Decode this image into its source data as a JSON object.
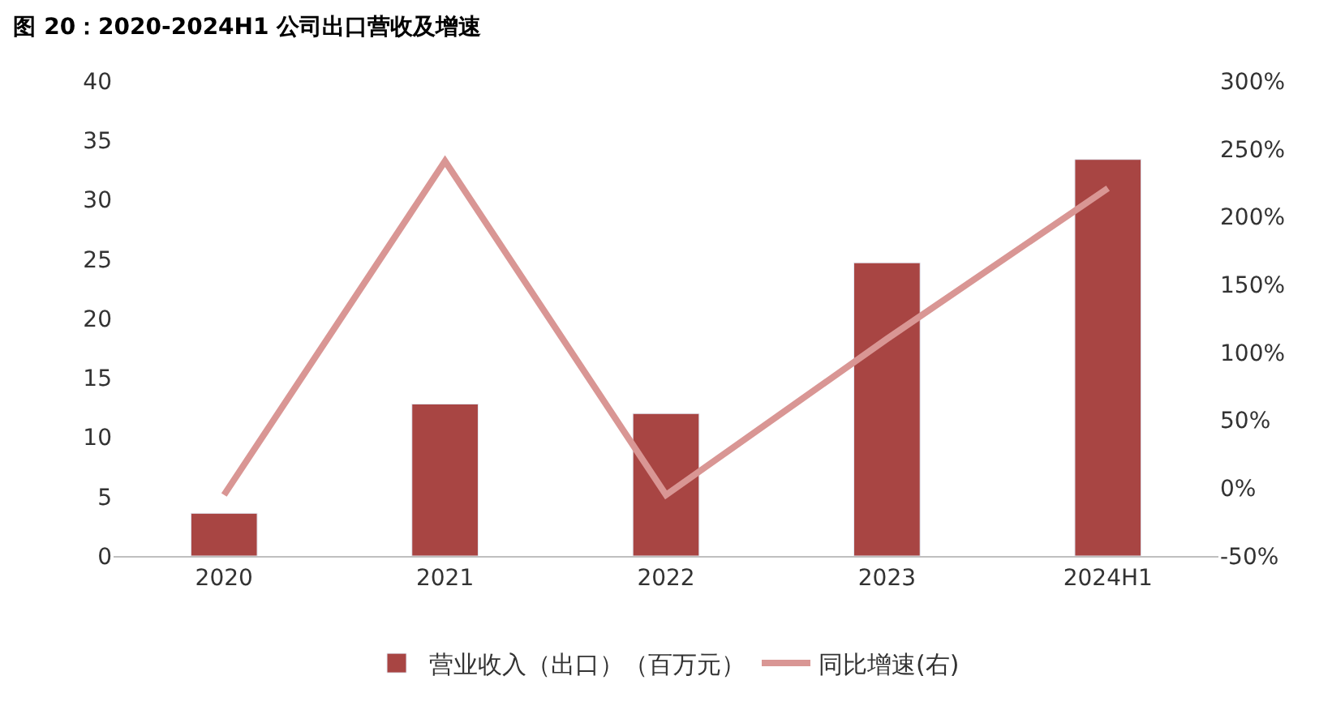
{
  "chart_data": {
    "type": "bar",
    "title": "图 20：2020-2024H1 公司出口营收及增速",
    "categories": [
      "2020",
      "2021",
      "2022",
      "2023",
      "2024H1"
    ],
    "series": [
      {
        "name": "营业收入（出口）（百万元）",
        "color": "#a84543",
        "values": [
          3.6,
          12.8,
          12.0,
          24.7,
          33.4
        ]
      },
      {
        "name": "同比增速(右)",
        "type": "line",
        "axis": "y2",
        "color": "#d99694",
        "marker": "none",
        "values": [
          -5,
          241,
          -5,
          110,
          221
        ]
      }
    ],
    "ylim": [
      0,
      40
    ],
    "yticks": [
      0,
      5,
      10,
      15,
      20,
      25,
      30,
      35,
      40
    ],
    "y2lim": [
      -50,
      300
    ],
    "y2ticks": [
      {
        "value": -50,
        "label": "-50%"
      },
      {
        "value": 0,
        "label": "0%"
      },
      {
        "value": 50,
        "label": "50%"
      },
      {
        "value": 100,
        "label": "100%"
      },
      {
        "value": 150,
        "label": "150%"
      },
      {
        "value": 200,
        "label": "200%"
      },
      {
        "value": 250,
        "label": "250%"
      },
      {
        "value": 300,
        "label": "300%"
      }
    ],
    "legend": "bottom"
  }
}
